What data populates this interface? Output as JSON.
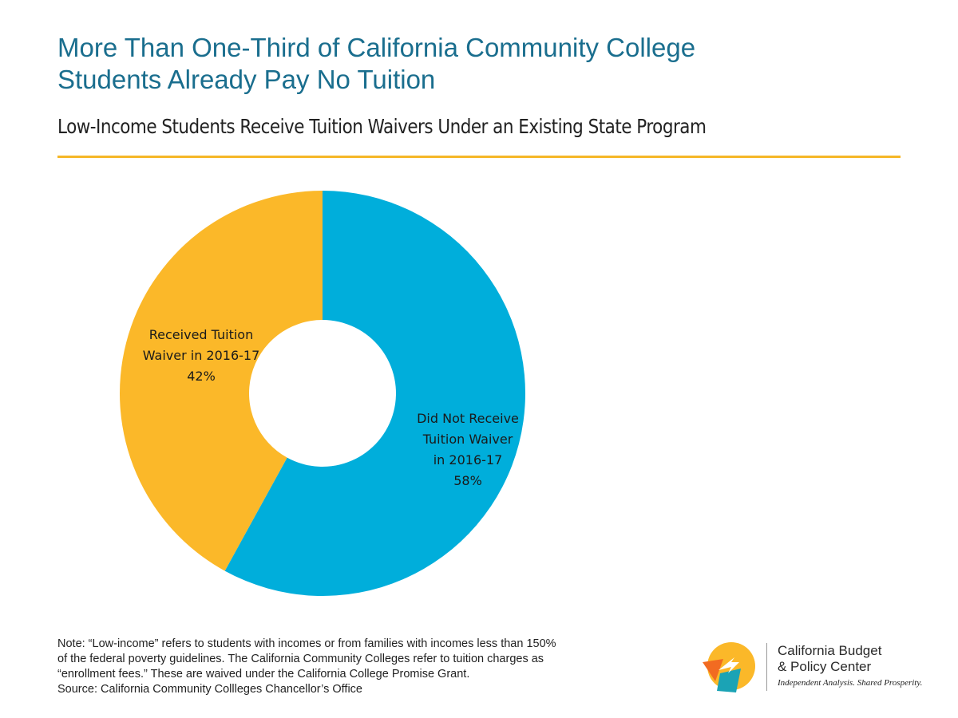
{
  "header": {
    "title_line1": "More Than One-Third of California Community College",
    "title_line2": "Students Already Pay No Tuition",
    "subtitle": "Low-Income Students Receive Tuition Waivers Under an Existing State Program"
  },
  "chart_data": {
    "type": "pie",
    "donut": true,
    "slices": [
      {
        "label_lines": [
          "Did Not Receive",
          "Tuition Waiver",
          "in 2016-17",
          "58%"
        ],
        "value": 58,
        "color": "#00aedb"
      },
      {
        "label_lines": [
          "Received Tuition",
          "Waiver in 2016-17",
          "42%"
        ],
        "value": 42,
        "color": "#fbb829"
      }
    ]
  },
  "note": {
    "lines": [
      "Note: “Low-income” refers to students with incomes or from families with incomes less than 150%",
      "of the federal poverty guidelines. The California Community Colleges refer to tuition charges as",
      "“enrollment fees.” These are waived under the California College Promise Grant.",
      "Source: California Community Collleges Chancellor’s Office"
    ]
  },
  "logo": {
    "name_line1": "California Budget",
    "name_line2": "& Policy Center",
    "tagline": "Independent Analysis. Shared Prosperity.",
    "colors": {
      "yellow": "#fbb829",
      "orange": "#f26b21",
      "teal": "#1ba3b5"
    }
  }
}
